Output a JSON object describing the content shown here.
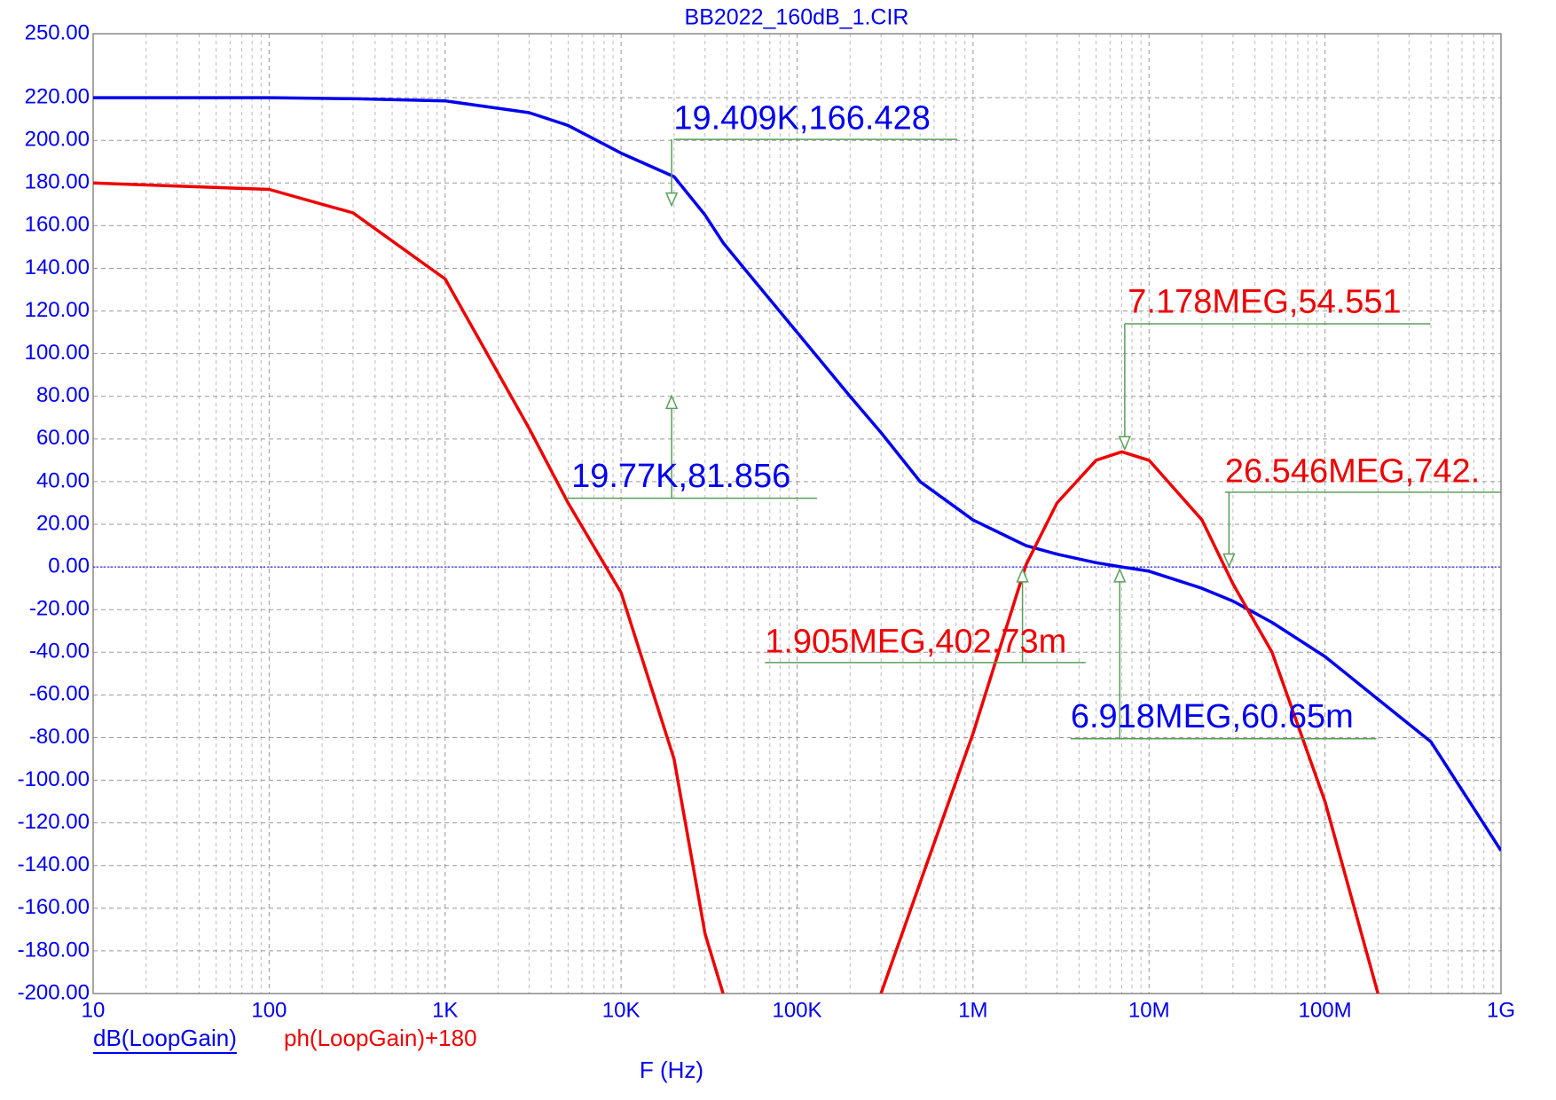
{
  "chart_data": {
    "type": "line",
    "title": "BB2022_160dB_1.CIR",
    "xlabel": "F (Hz)",
    "xscale": "log",
    "grid": true,
    "xlim": [
      10,
      1000000000
    ],
    "ylim": [
      -200,
      250
    ],
    "xticks": [
      10,
      100,
      {
        "value": 1000,
        "label": "1K"
      },
      {
        "value": 10000,
        "label": "10K"
      },
      {
        "value": 100000,
        "label": "100K"
      },
      {
        "value": 1000000,
        "label": "1M"
      },
      {
        "value": 10000000,
        "label": "10M"
      },
      {
        "value": 100000000,
        "label": "100M"
      },
      {
        "value": 1000000000,
        "label": "1G"
      }
    ],
    "yticks": [
      {
        "value": 250,
        "label": "250.00"
      },
      {
        "value": 220,
        "label": "220.00"
      },
      {
        "value": 200,
        "label": "200.00"
      },
      {
        "value": 180,
        "label": "180.00"
      },
      {
        "value": 160,
        "label": "160.00"
      },
      {
        "value": 140,
        "label": "140.00"
      },
      {
        "value": 120,
        "label": "120.00"
      },
      {
        "value": 100,
        "label": "100.00"
      },
      {
        "value": 80,
        "label": "80.00"
      },
      {
        "value": 60,
        "label": "60.00"
      },
      {
        "value": 40,
        "label": "40.00"
      },
      {
        "value": 20,
        "label": "20.00"
      },
      {
        "value": 0,
        "label": "0.00"
      },
      {
        "value": -20,
        "label": "-20.00"
      },
      {
        "value": -40,
        "label": "-40.00"
      },
      {
        "value": -60,
        "label": "-60.00"
      },
      {
        "value": -80,
        "label": "-80.00"
      },
      {
        "value": -100,
        "label": "-100.00"
      },
      {
        "value": -120,
        "label": "-120.00"
      },
      {
        "value": -140,
        "label": "-140.00"
      },
      {
        "value": -160,
        "label": "-160.00"
      },
      {
        "value": -180,
        "label": "-180.00"
      },
      {
        "value": -200,
        "label": "-200.00"
      }
    ],
    "x": [
      10,
      100,
      300,
      1000,
      3000,
      5000,
      10000,
      20000,
      30000,
      38000,
      50000,
      100000,
      200000,
      300000,
      500000,
      1000000,
      2000000,
      3000000,
      5000000,
      7000000,
      10000000,
      20000000,
      30000000,
      50000000,
      100000000,
      200000000,
      400000000,
      1000000000
    ],
    "series": [
      {
        "name": "dB(LoopGain)",
        "color": "#0000ee",
        "values": [
          220,
          220,
          219.5,
          218.5,
          213,
          207,
          194,
          183,
          165,
          152,
          140,
          110,
          80,
          63,
          40,
          22,
          10,
          6,
          2,
          0,
          -2,
          -10,
          -16,
          -26,
          -42,
          -62,
          -82,
          -133
        ]
      },
      {
        "name": "ph(LoopGain)+180",
        "color": "#ee0000",
        "values": [
          180,
          177,
          166,
          135,
          65,
          30,
          -12,
          -90,
          -172,
          -200,
          null,
          null,
          null,
          -200,
          -148,
          -78,
          1,
          30,
          50,
          54,
          50,
          22,
          -8,
          -40,
          -110,
          -200,
          null,
          null
        ]
      }
    ],
    "annotations": [
      {
        "text": "19.409K,166.428",
        "color": "#0000ee"
      },
      {
        "text": "19.77K,81.856",
        "color": "#0000ee"
      },
      {
        "text": "7.178MEG,54.551",
        "color": "#ee0000"
      },
      {
        "text": "26.546MEG,742.",
        "color": "#ee0000"
      },
      {
        "text": "1.905MEG,402.73m",
        "color": "#ee0000"
      },
      {
        "text": "6.918MEG,60.65m",
        "color": "#0000ee"
      }
    ]
  }
}
